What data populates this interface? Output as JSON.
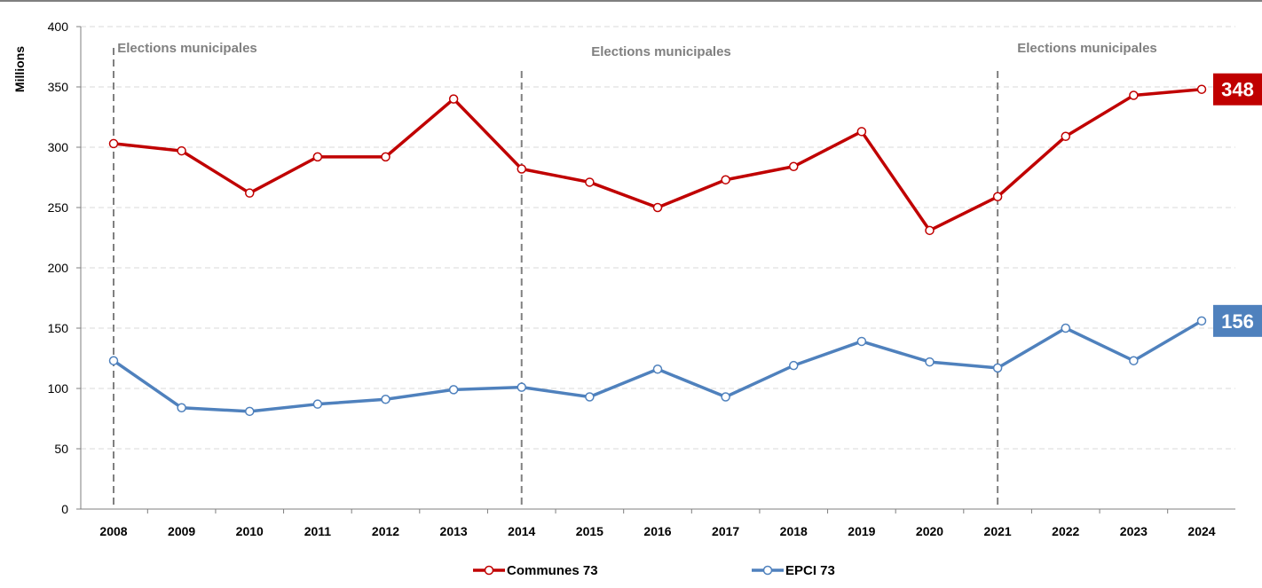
{
  "chart_data": {
    "type": "line",
    "title": "",
    "xlabel": "",
    "ylabel": "Millions",
    "ylim": [
      0,
      400
    ],
    "yticks": [
      0,
      50,
      100,
      150,
      200,
      250,
      300,
      350,
      400
    ],
    "categories": [
      "2008",
      "2009",
      "2010",
      "2011",
      "2012",
      "2013",
      "2014",
      "2015",
      "2016",
      "2017",
      "2018",
      "2019",
      "2020",
      "2021",
      "2022",
      "2023",
      "2024"
    ],
    "grid": "horizontal dashed",
    "legend_position": "bottom",
    "series": [
      {
        "name": "Communes 73",
        "color": "#c00000",
        "values": [
          303,
          297,
          262,
          292,
          292,
          340,
          282,
          271,
          250,
          273,
          284,
          313,
          231,
          259,
          309,
          343,
          348
        ],
        "end_label": "348"
      },
      {
        "name": "EPCI 73",
        "color": "#4f81bd",
        "values": [
          123,
          84,
          81,
          87,
          91,
          99,
          101,
          93,
          116,
          93,
          119,
          139,
          122,
          117,
          150,
          123,
          156
        ],
        "end_label": "156"
      }
    ],
    "annotations": [
      {
        "text": "Elections municipales",
        "x": "2008"
      },
      {
        "text": "Elections municipales",
        "x": "2014"
      },
      {
        "text": "Elections municipales",
        "x": "2021"
      }
    ]
  }
}
